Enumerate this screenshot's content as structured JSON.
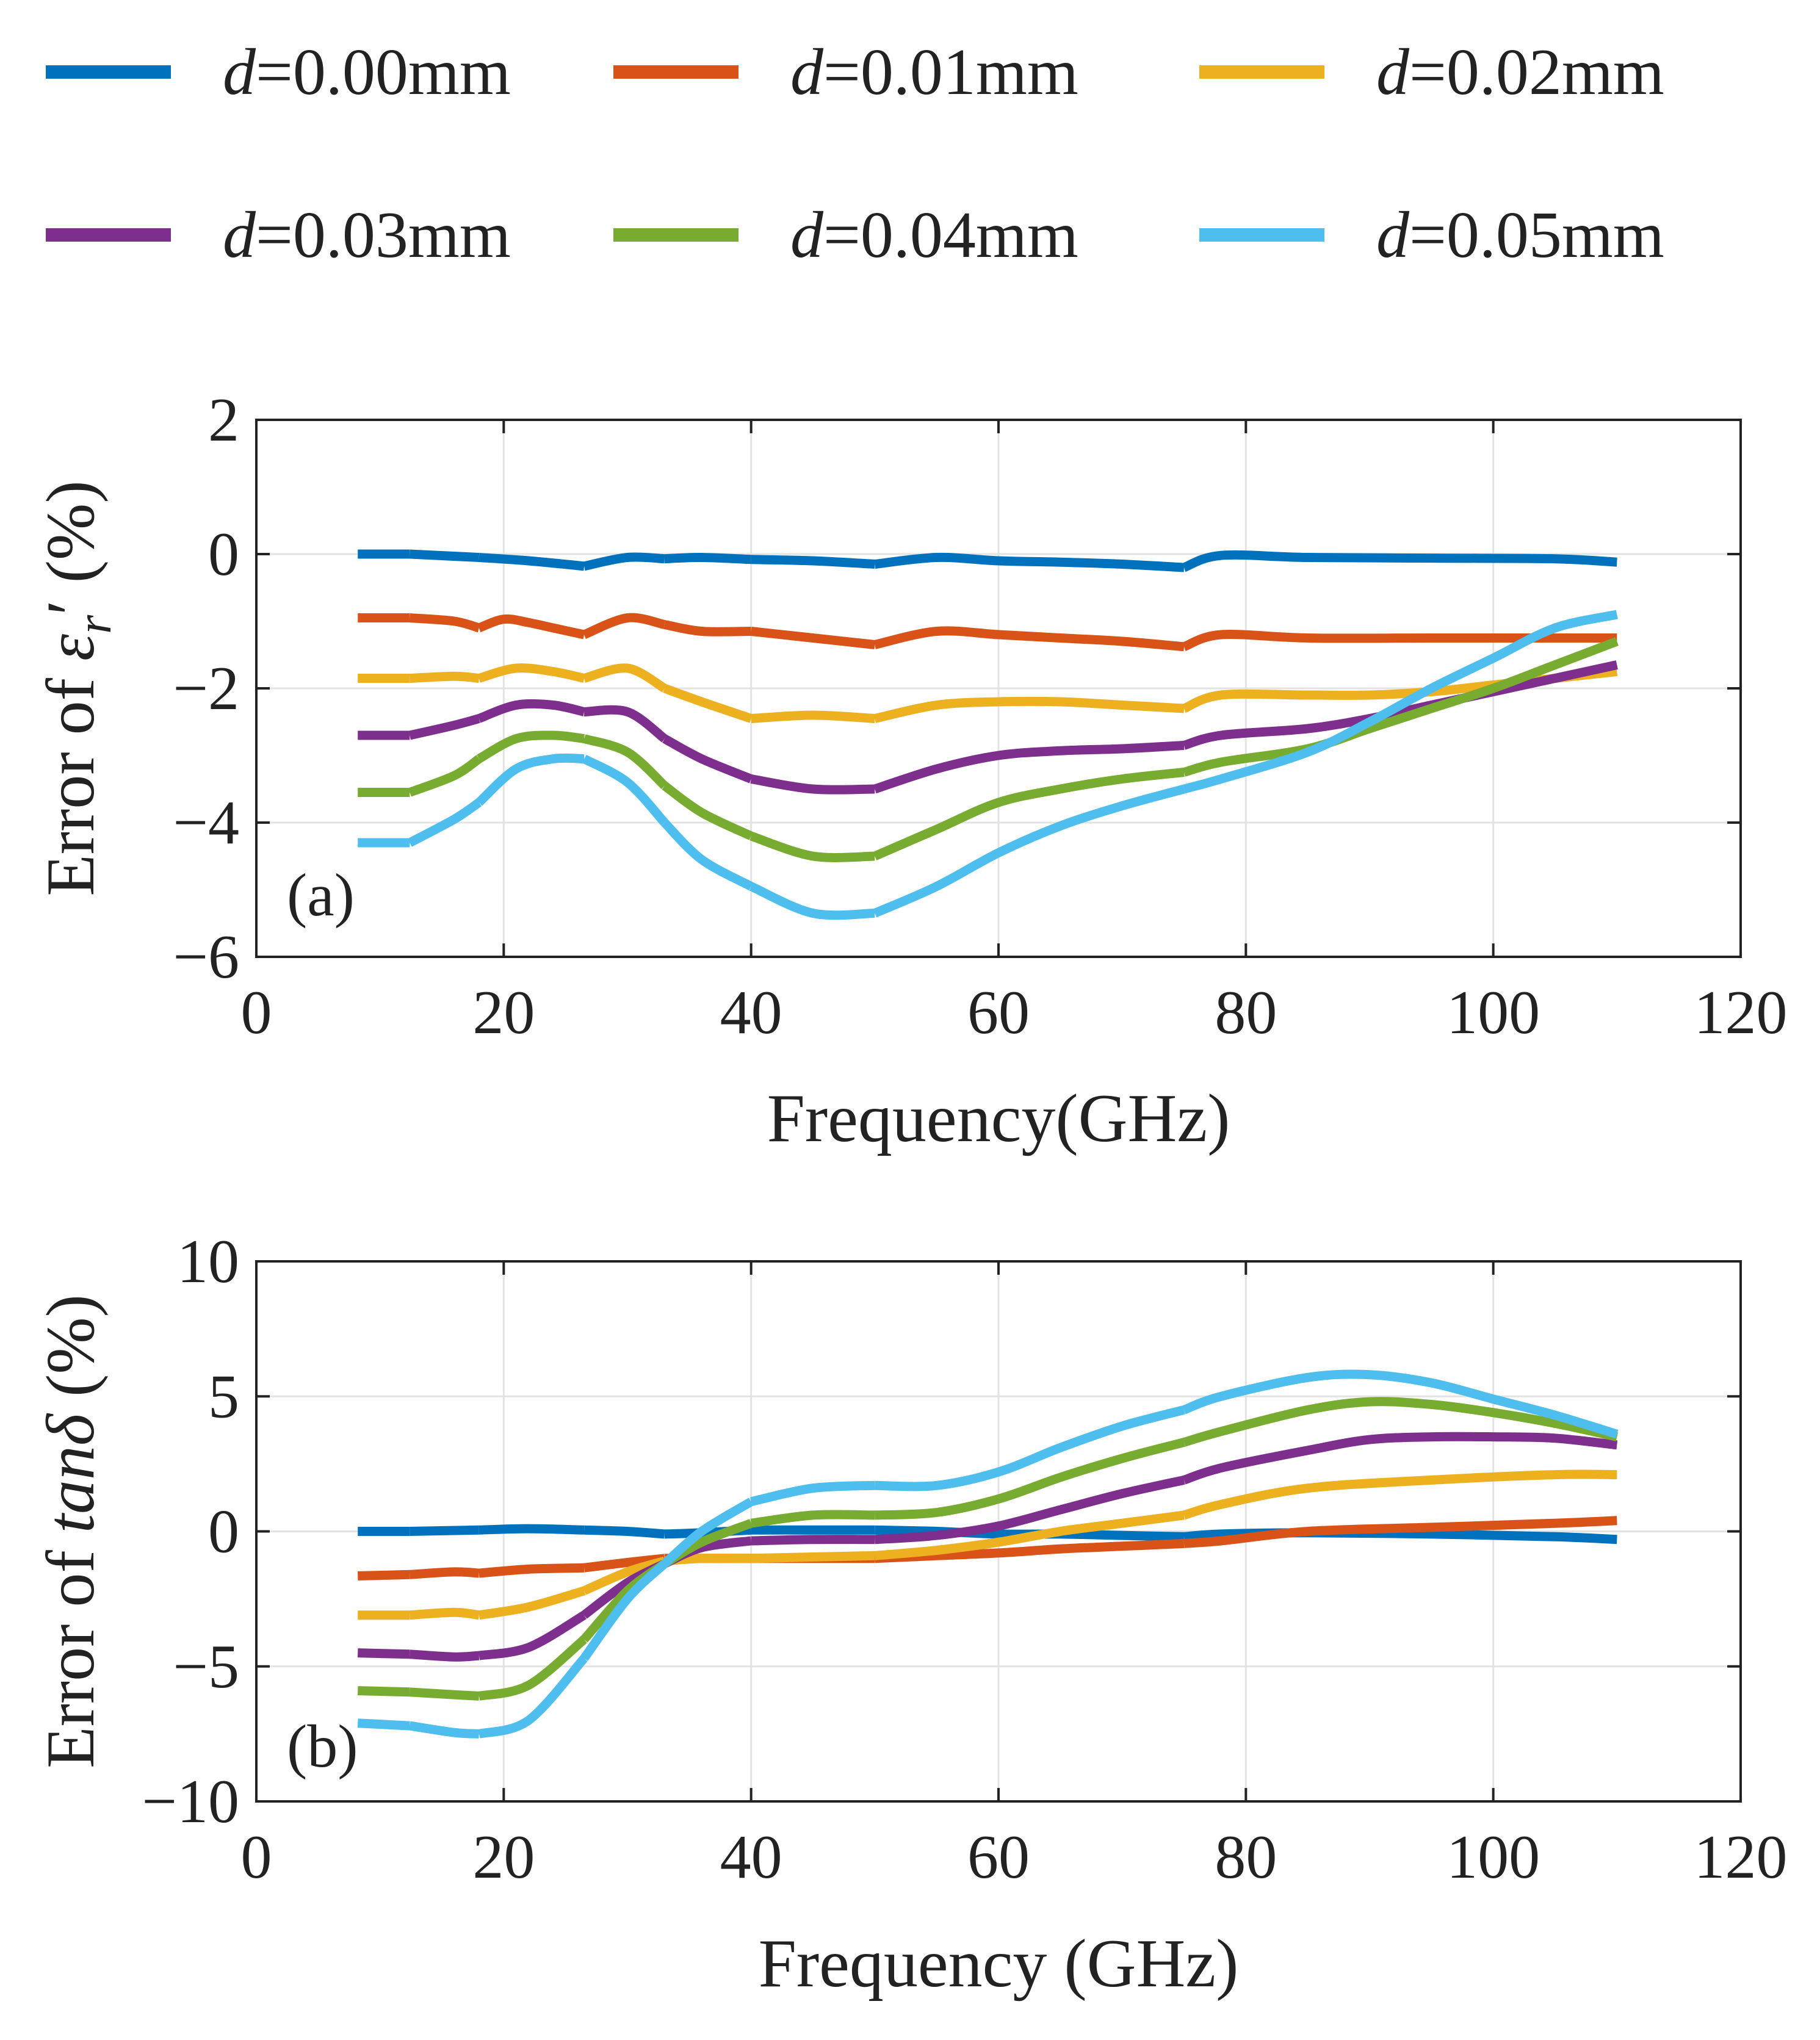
{
  "legend": {
    "entries": [
      {
        "var": "d",
        "value": "=0.00mm",
        "color": "#0072BD"
      },
      {
        "var": "d",
        "value": "=0.01mm",
        "color": "#D95319"
      },
      {
        "var": "d",
        "value": "=0.02mm",
        "color": "#EDB120"
      },
      {
        "var": "d",
        "value": "=0.03mm",
        "color": "#7E2F8E"
      },
      {
        "var": "d",
        "value": "=0.04mm",
        "color": "#77AC30"
      },
      {
        "var": "d",
        "value": "=0.05mm",
        "color": "#4DBEEE"
      }
    ]
  },
  "chart_data": [
    {
      "type": "line",
      "panel_label": "(a)",
      "xlabel": "Frequency(GHz)",
      "ylabel_prefix": "Error of ",
      "ylabel_symbol": "ε",
      "ylabel_sub": "r",
      "ylabel_prime": "′",
      "ylabel_suffix": " (%)",
      "xlim": [
        0,
        120
      ],
      "ylim": [
        -6,
        2
      ],
      "xticks": [
        0,
        20,
        40,
        60,
        80,
        100,
        120
      ],
      "yticks": [
        -6,
        -4,
        -2,
        0,
        2
      ],
      "ytick_labels": [
        "−6",
        "−4",
        "−2",
        "0",
        "2"
      ],
      "grid": true,
      "bands": [
        [
          8.2,
          12.4
        ],
        [
          12.4,
          18
        ],
        [
          18,
          26.5
        ],
        [
          26.5,
          33
        ],
        [
          33,
          40
        ],
        [
          40,
          50
        ],
        [
          50,
          75
        ],
        [
          75,
          110
        ]
      ],
      "series": [
        {
          "name": "d=0.00mm",
          "color": "#0072BD",
          "x": [
            8.2,
            12.4,
            18,
            22,
            26.5,
            30,
            33,
            36,
            40,
            45,
            50,
            55,
            60,
            65,
            70,
            75,
            78,
            85,
            95,
            105,
            110
          ],
          "y": [
            0.0,
            0.0,
            -0.05,
            -0.1,
            -0.18,
            -0.05,
            -0.07,
            -0.05,
            -0.08,
            -0.1,
            -0.15,
            -0.05,
            -0.1,
            -0.12,
            -0.15,
            -0.2,
            -0.02,
            -0.05,
            -0.06,
            -0.07,
            -0.12
          ]
        },
        {
          "name": "d=0.01mm",
          "color": "#D95319",
          "x": [
            8.2,
            12.4,
            16,
            18,
            20,
            22,
            24,
            26.5,
            30,
            33,
            36,
            40,
            45,
            50,
            55,
            60,
            65,
            70,
            75,
            78,
            85,
            95,
            105,
            110
          ],
          "y": [
            -0.95,
            -0.95,
            -1.0,
            -1.1,
            -0.97,
            -1.02,
            -1.1,
            -1.2,
            -0.95,
            -1.05,
            -1.15,
            -1.15,
            -1.25,
            -1.35,
            -1.15,
            -1.2,
            -1.25,
            -1.3,
            -1.38,
            -1.2,
            -1.25,
            -1.25,
            -1.25,
            -1.25
          ]
        },
        {
          "name": "d=0.02mm",
          "color": "#EDB120",
          "x": [
            8.2,
            12.4,
            16,
            18,
            21,
            24,
            26.5,
            30,
            33,
            36,
            40,
            45,
            50,
            55,
            60,
            65,
            70,
            75,
            78,
            85,
            90,
            95,
            100,
            105,
            110
          ],
          "y": [
            -1.85,
            -1.85,
            -1.82,
            -1.85,
            -1.7,
            -1.75,
            -1.85,
            -1.7,
            -2.0,
            -2.2,
            -2.45,
            -2.4,
            -2.45,
            -2.25,
            -2.2,
            -2.2,
            -2.25,
            -2.3,
            -2.1,
            -2.1,
            -2.1,
            -2.05,
            -1.95,
            -1.85,
            -1.75
          ]
        },
        {
          "name": "d=0.03mm",
          "color": "#7E2F8E",
          "x": [
            8.2,
            12.4,
            16,
            18,
            21,
            24,
            26.5,
            30,
            33,
            36,
            40,
            45,
            50,
            55,
            60,
            65,
            70,
            75,
            78,
            85,
            90,
            95,
            100,
            105,
            110
          ],
          "y": [
            -2.7,
            -2.7,
            -2.55,
            -2.45,
            -2.25,
            -2.25,
            -2.35,
            -2.35,
            -2.75,
            -3.05,
            -3.35,
            -3.5,
            -3.5,
            -3.2,
            -3.0,
            -2.93,
            -2.9,
            -2.85,
            -2.7,
            -2.6,
            -2.45,
            -2.25,
            -2.05,
            -1.85,
            -1.65
          ]
        },
        {
          "name": "d=0.04mm",
          "color": "#77AC30",
          "x": [
            8.2,
            12.4,
            16,
            18,
            21,
            24,
            26.5,
            30,
            33,
            36,
            40,
            45,
            50,
            55,
            60,
            65,
            70,
            75,
            78,
            85,
            90,
            95,
            100,
            105,
            110
          ],
          "y": [
            -3.55,
            -3.55,
            -3.3,
            -3.05,
            -2.75,
            -2.7,
            -2.75,
            -2.95,
            -3.45,
            -3.85,
            -4.2,
            -4.5,
            -4.5,
            -4.1,
            -3.7,
            -3.5,
            -3.35,
            -3.25,
            -3.1,
            -2.9,
            -2.6,
            -2.3,
            -2.0,
            -1.65,
            -1.3
          ]
        },
        {
          "name": "d=0.05mm",
          "color": "#4DBEEE",
          "x": [
            8.2,
            12.4,
            16,
            18,
            21,
            24,
            26.5,
            30,
            33,
            36,
            40,
            45,
            50,
            55,
            60,
            65,
            70,
            75,
            78,
            85,
            90,
            95,
            100,
            105,
            110
          ],
          "y": [
            -4.3,
            -4.3,
            -3.95,
            -3.7,
            -3.2,
            -3.05,
            -3.05,
            -3.4,
            -4.0,
            -4.55,
            -4.95,
            -5.35,
            -5.35,
            -4.95,
            -4.45,
            -4.05,
            -3.75,
            -3.5,
            -3.35,
            -2.95,
            -2.5,
            -2.0,
            -1.55,
            -1.1,
            -0.9
          ]
        }
      ]
    },
    {
      "type": "line",
      "panel_label": "(b)",
      "xlabel": "Frequency (GHz)",
      "ylabel_prefix": "Error of ",
      "ylabel_symbol": "tanδ",
      "ylabel_sub": "",
      "ylabel_prime": "",
      "ylabel_suffix": " (%)",
      "xlim": [
        0,
        120
      ],
      "ylim": [
        -10,
        10
      ],
      "xticks": [
        0,
        20,
        40,
        60,
        80,
        100,
        120
      ],
      "yticks": [
        -10,
        -5,
        0,
        5,
        10
      ],
      "ytick_labels": [
        "−10",
        "−5",
        "0",
        "5",
        "10"
      ],
      "grid": true,
      "bands": [
        [
          8.2,
          12.4
        ],
        [
          12.4,
          18
        ],
        [
          18,
          26.5
        ],
        [
          26.5,
          33
        ],
        [
          33,
          40
        ],
        [
          40,
          50
        ],
        [
          50,
          75
        ],
        [
          75,
          110
        ]
      ],
      "series": [
        {
          "name": "d=0.00mm",
          "color": "#0072BD",
          "x": [
            8.2,
            12.4,
            18,
            22,
            26.5,
            30,
            33,
            36,
            40,
            45,
            50,
            55,
            60,
            65,
            70,
            75,
            78,
            85,
            95,
            105,
            110
          ],
          "y": [
            0.0,
            0.0,
            0.05,
            0.1,
            0.05,
            0.0,
            -0.1,
            -0.05,
            0.05,
            0.05,
            0.05,
            0.0,
            -0.1,
            -0.1,
            -0.15,
            -0.2,
            -0.1,
            -0.05,
            -0.1,
            -0.2,
            -0.3
          ]
        },
        {
          "name": "d=0.01mm",
          "color": "#D95319",
          "x": [
            8.2,
            12.4,
            16,
            18,
            22,
            26.5,
            30,
            33,
            36,
            40,
            45,
            50,
            55,
            60,
            65,
            70,
            75,
            78,
            85,
            95,
            105,
            110
          ],
          "y": [
            -1.65,
            -1.6,
            -1.5,
            -1.55,
            -1.4,
            -1.35,
            -1.15,
            -1.0,
            -1.0,
            -1.0,
            -1.0,
            -1.0,
            -0.9,
            -0.8,
            -0.65,
            -0.55,
            -0.45,
            -0.35,
            0.0,
            0.15,
            0.3,
            0.4
          ]
        },
        {
          "name": "d=0.02mm",
          "color": "#EDB120",
          "x": [
            8.2,
            12.4,
            16,
            18,
            22,
            26.5,
            30,
            33,
            36,
            40,
            45,
            50,
            55,
            60,
            65,
            70,
            75,
            78,
            85,
            95,
            105,
            110
          ],
          "y": [
            -3.1,
            -3.1,
            -3.0,
            -3.1,
            -2.8,
            -2.2,
            -1.5,
            -1.1,
            -1.0,
            -1.0,
            -0.95,
            -0.9,
            -0.7,
            -0.4,
            0.0,
            0.3,
            0.6,
            1.0,
            1.6,
            1.9,
            2.1,
            2.1
          ]
        },
        {
          "name": "d=0.03mm",
          "color": "#7E2F8E",
          "x": [
            8.2,
            12.4,
            16,
            18,
            22,
            26.5,
            30,
            33,
            36,
            40,
            45,
            50,
            55,
            60,
            65,
            70,
            75,
            78,
            85,
            90,
            95,
            100,
            105,
            110
          ],
          "y": [
            -4.5,
            -4.55,
            -4.65,
            -4.6,
            -4.3,
            -3.1,
            -1.9,
            -1.2,
            -0.6,
            -0.35,
            -0.3,
            -0.3,
            -0.15,
            0.2,
            0.8,
            1.4,
            1.9,
            2.35,
            3.0,
            3.4,
            3.5,
            3.5,
            3.45,
            3.2
          ]
        },
        {
          "name": "d=0.04mm",
          "color": "#77AC30",
          "x": [
            8.2,
            12.4,
            16,
            18,
            22,
            26.5,
            30,
            33,
            36,
            40,
            45,
            50,
            55,
            60,
            65,
            70,
            75,
            78,
            85,
            90,
            95,
            100,
            105,
            110
          ],
          "y": [
            -5.9,
            -5.95,
            -6.05,
            -6.1,
            -5.7,
            -4.0,
            -2.2,
            -1.2,
            -0.4,
            0.3,
            0.6,
            0.6,
            0.7,
            1.2,
            2.0,
            2.7,
            3.3,
            3.7,
            4.5,
            4.8,
            4.7,
            4.4,
            4.0,
            3.5
          ]
        },
        {
          "name": "d=0.05mm",
          "color": "#4DBEEE",
          "x": [
            8.2,
            12.4,
            16,
            18,
            22,
            26.5,
            30,
            33,
            36,
            40,
            45,
            50,
            55,
            60,
            65,
            70,
            75,
            78,
            85,
            90,
            95,
            100,
            105,
            110
          ],
          "y": [
            -7.1,
            -7.2,
            -7.45,
            -7.5,
            -7.0,
            -4.7,
            -2.5,
            -1.2,
            0.0,
            1.1,
            1.6,
            1.7,
            1.7,
            2.2,
            3.1,
            3.9,
            4.5,
            5.0,
            5.7,
            5.8,
            5.5,
            4.9,
            4.3,
            3.6
          ]
        }
      ]
    }
  ]
}
